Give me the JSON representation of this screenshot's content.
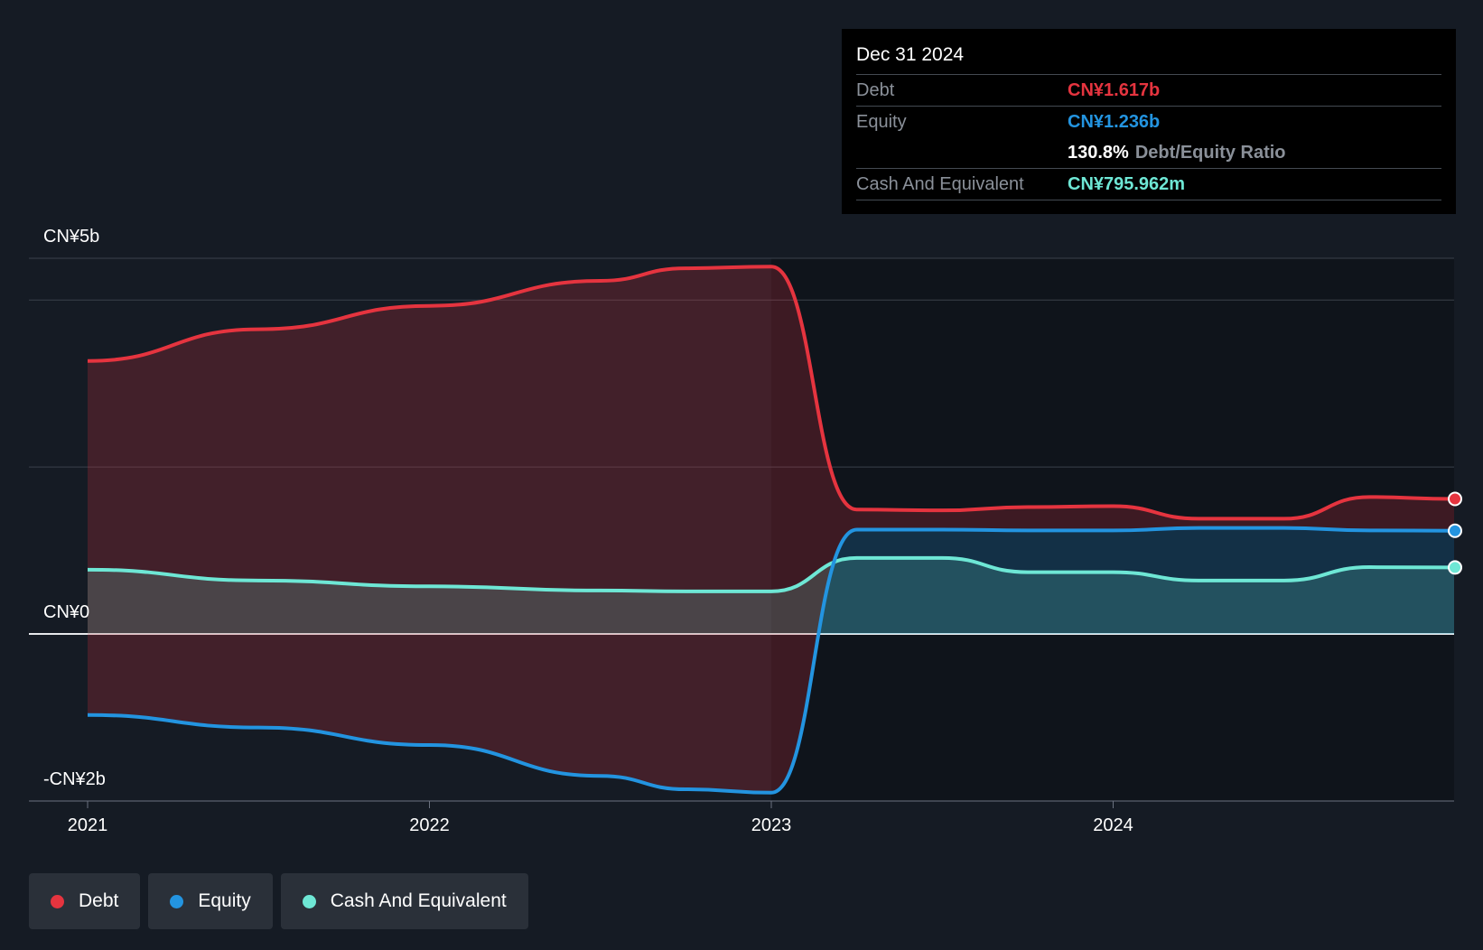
{
  "tooltip": {
    "date": "Dec 31 2024",
    "debt_label": "Debt",
    "debt_value": "CN¥1.617b",
    "equity_label": "Equity",
    "equity_value": "CN¥1.236b",
    "ratio_value": "130.8%",
    "ratio_label": "Debt/Equity Ratio",
    "cash_label": "Cash And Equivalent",
    "cash_value": "CN¥795.962m"
  },
  "legend": [
    {
      "label": "Debt",
      "color": "#e5343f"
    },
    {
      "label": "Equity",
      "color": "#2394e0"
    },
    {
      "label": "Cash And Equivalent",
      "color": "#6ee7d5"
    }
  ],
  "chart_data": {
    "type": "area",
    "ylim": [
      -2.0,
      4.5
    ],
    "y_tick_labels": [
      {
        "value": 4.5,
        "label": "CN¥5b"
      },
      {
        "value": 0,
        "label": "CN¥0"
      },
      {
        "value": -2.0,
        "label": "-CN¥2b"
      }
    ],
    "gridlines": [
      4.5,
      4.0,
      2.0,
      0,
      -2.0
    ],
    "xlim": [
      2020.83,
      2025.0
    ],
    "x_ticks": [
      {
        "value": 2021,
        "label": "2021"
      },
      {
        "value": 2022,
        "label": "2022"
      },
      {
        "value": 2023,
        "label": "2023"
      },
      {
        "value": 2024,
        "label": "2024"
      }
    ],
    "series": [
      {
        "name": "Debt",
        "color": "#e5343f",
        "x": [
          2021.0,
          2021.5,
          2022.0,
          2022.5,
          2022.75,
          2023.0,
          2023.25,
          2023.5,
          2023.75,
          2024.0,
          2024.25,
          2024.5,
          2024.75,
          2025.0
        ],
        "y": [
          3.27,
          3.65,
          3.93,
          4.23,
          4.38,
          4.4,
          1.49,
          1.48,
          1.52,
          1.53,
          1.38,
          1.38,
          1.64,
          1.617
        ]
      },
      {
        "name": "Equity",
        "color": "#2394e0",
        "x": [
          2021.0,
          2021.5,
          2022.0,
          2022.5,
          2022.75,
          2023.0,
          2023.25,
          2023.5,
          2023.75,
          2024.0,
          2024.25,
          2024.5,
          2024.75,
          2025.0
        ],
        "y": [
          -0.97,
          -1.12,
          -1.33,
          -1.7,
          -1.86,
          -1.9,
          1.25,
          1.25,
          1.24,
          1.24,
          1.27,
          1.27,
          1.24,
          1.236
        ]
      },
      {
        "name": "Cash And Equivalent",
        "color": "#6ee7d5",
        "x": [
          2021.0,
          2021.5,
          2022.0,
          2022.5,
          2022.75,
          2023.0,
          2023.25,
          2023.5,
          2023.75,
          2024.0,
          2024.25,
          2024.5,
          2024.75,
          2025.0
        ],
        "y": [
          0.77,
          0.64,
          0.57,
          0.52,
          0.51,
          0.51,
          0.91,
          0.91,
          0.74,
          0.74,
          0.64,
          0.64,
          0.8,
          0.796
        ]
      }
    ],
    "highlight_region": {
      "x_from": 2023.0,
      "x_to": 2025.0
    }
  }
}
